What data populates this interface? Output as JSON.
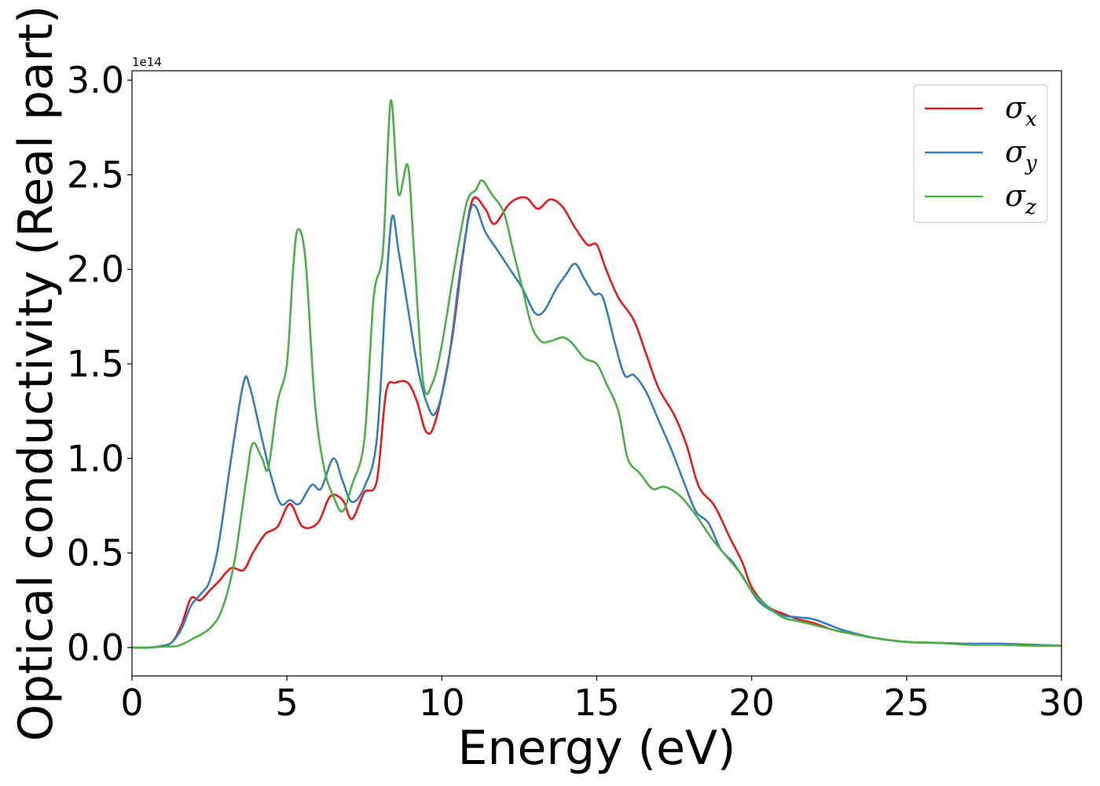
{
  "chart_data": {
    "type": "line",
    "xlabel": "Energy (eV)",
    "ylabel": "Optical conductivity (Real part)",
    "y_offset_label": "1e14",
    "xlim": [
      0,
      30
    ],
    "ylim": [
      -0.15,
      3.05
    ],
    "x_ticks": [
      0,
      5,
      10,
      15,
      20,
      25,
      30
    ],
    "x_tick_labels": [
      "0",
      "5",
      "10",
      "15",
      "20",
      "25",
      "30"
    ],
    "y_ticks": [
      0.0,
      0.5,
      1.0,
      1.5,
      2.0,
      2.5,
      3.0
    ],
    "y_tick_labels": [
      "0.0",
      "0.5",
      "1.0",
      "1.5",
      "2.0",
      "2.5",
      "3.0"
    ],
    "grid": false,
    "legend_position": "top-right",
    "series": [
      {
        "name": "σx",
        "legend_main": "σ",
        "legend_sub": "x",
        "color": "#e41a1c",
        "points": [
          [
            0,
            0
          ],
          [
            0.5,
            0
          ],
          [
            1.0,
            0.01
          ],
          [
            1.3,
            0.03
          ],
          [
            1.6,
            0.12
          ],
          [
            1.9,
            0.26
          ],
          [
            2.2,
            0.25
          ],
          [
            2.5,
            0.3
          ],
          [
            2.8,
            0.35
          ],
          [
            3.2,
            0.42
          ],
          [
            3.6,
            0.41
          ],
          [
            3.9,
            0.5
          ],
          [
            4.3,
            0.6
          ],
          [
            4.7,
            0.64
          ],
          [
            5.1,
            0.76
          ],
          [
            5.5,
            0.64
          ],
          [
            6.0,
            0.66
          ],
          [
            6.4,
            0.8
          ],
          [
            6.8,
            0.78
          ],
          [
            7.1,
            0.68
          ],
          [
            7.5,
            0.82
          ],
          [
            7.9,
            0.88
          ],
          [
            8.2,
            1.35
          ],
          [
            8.5,
            1.4
          ],
          [
            8.9,
            1.4
          ],
          [
            9.2,
            1.3
          ],
          [
            9.5,
            1.14
          ],
          [
            9.8,
            1.2
          ],
          [
            10.3,
            1.6
          ],
          [
            10.7,
            2.1
          ],
          [
            11.0,
            2.37
          ],
          [
            11.4,
            2.32
          ],
          [
            11.7,
            2.24
          ],
          [
            12.2,
            2.35
          ],
          [
            12.7,
            2.38
          ],
          [
            13.1,
            2.32
          ],
          [
            13.5,
            2.37
          ],
          [
            13.9,
            2.33
          ],
          [
            14.3,
            2.22
          ],
          [
            14.7,
            2.13
          ],
          [
            15.0,
            2.13
          ],
          [
            15.3,
            2.0
          ],
          [
            15.7,
            1.85
          ],
          [
            16.2,
            1.73
          ],
          [
            16.6,
            1.55
          ],
          [
            17.0,
            1.37
          ],
          [
            17.5,
            1.23
          ],
          [
            17.9,
            1.07
          ],
          [
            18.3,
            0.85
          ],
          [
            18.8,
            0.75
          ],
          [
            19.3,
            0.58
          ],
          [
            19.7,
            0.45
          ],
          [
            20.0,
            0.32
          ],
          [
            20.5,
            0.22
          ],
          [
            21.0,
            0.18
          ],
          [
            21.5,
            0.15
          ],
          [
            22.0,
            0.13
          ],
          [
            22.5,
            0.1
          ],
          [
            23.0,
            0.08
          ],
          [
            24.0,
            0.05
          ],
          [
            25.0,
            0.03
          ],
          [
            26.0,
            0.025
          ],
          [
            27.0,
            0.02
          ],
          [
            28.0,
            0.02
          ],
          [
            29.0,
            0.015
          ],
          [
            30.0,
            0.01
          ]
        ]
      },
      {
        "name": "σy",
        "legend_main": "σ",
        "legend_sub": "y",
        "color": "#377eb8",
        "points": [
          [
            0,
            0
          ],
          [
            0.5,
            0
          ],
          [
            1.0,
            0.01
          ],
          [
            1.3,
            0.03
          ],
          [
            1.6,
            0.1
          ],
          [
            1.9,
            0.22
          ],
          [
            2.2,
            0.28
          ],
          [
            2.5,
            0.35
          ],
          [
            2.8,
            0.55
          ],
          [
            3.2,
            1.0
          ],
          [
            3.6,
            1.4
          ],
          [
            3.8,
            1.38
          ],
          [
            4.2,
            1.1
          ],
          [
            4.5,
            0.9
          ],
          [
            4.8,
            0.76
          ],
          [
            5.1,
            0.78
          ],
          [
            5.4,
            0.76
          ],
          [
            5.8,
            0.86
          ],
          [
            6.1,
            0.84
          ],
          [
            6.5,
            1.0
          ],
          [
            6.8,
            0.88
          ],
          [
            7.1,
            0.77
          ],
          [
            7.5,
            0.85
          ],
          [
            7.9,
            1.1
          ],
          [
            8.2,
            1.9
          ],
          [
            8.4,
            2.28
          ],
          [
            8.6,
            2.1
          ],
          [
            8.9,
            1.8
          ],
          [
            9.2,
            1.5
          ],
          [
            9.5,
            1.3
          ],
          [
            9.8,
            1.24
          ],
          [
            10.2,
            1.5
          ],
          [
            10.6,
            2.0
          ],
          [
            10.9,
            2.3
          ],
          [
            11.1,
            2.33
          ],
          [
            11.4,
            2.2
          ],
          [
            11.8,
            2.1
          ],
          [
            12.2,
            2.0
          ],
          [
            12.6,
            1.9
          ],
          [
            13.0,
            1.77
          ],
          [
            13.3,
            1.78
          ],
          [
            13.7,
            1.9
          ],
          [
            14.0,
            1.97
          ],
          [
            14.3,
            2.03
          ],
          [
            14.6,
            1.95
          ],
          [
            14.9,
            1.87
          ],
          [
            15.2,
            1.85
          ],
          [
            15.6,
            1.6
          ],
          [
            15.9,
            1.44
          ],
          [
            16.2,
            1.44
          ],
          [
            16.6,
            1.35
          ],
          [
            17.0,
            1.2
          ],
          [
            17.4,
            1.05
          ],
          [
            17.8,
            0.88
          ],
          [
            18.2,
            0.72
          ],
          [
            18.6,
            0.66
          ],
          [
            19.0,
            0.52
          ],
          [
            19.4,
            0.45
          ],
          [
            19.8,
            0.35
          ],
          [
            20.2,
            0.25
          ],
          [
            20.6,
            0.2
          ],
          [
            21.0,
            0.17
          ],
          [
            21.5,
            0.16
          ],
          [
            22.0,
            0.15
          ],
          [
            22.5,
            0.12
          ],
          [
            23.0,
            0.09
          ],
          [
            24.0,
            0.05
          ],
          [
            25.0,
            0.03
          ],
          [
            26.0,
            0.025
          ],
          [
            27.0,
            0.02
          ],
          [
            28.0,
            0.02
          ],
          [
            29.0,
            0.015
          ],
          [
            30.0,
            0.01
          ]
        ]
      },
      {
        "name": "σz",
        "legend_main": "σ",
        "legend_sub": "z",
        "color": "#4daf4a",
        "points": [
          [
            0,
            0
          ],
          [
            0.5,
            0
          ],
          [
            1.0,
            0.005
          ],
          [
            1.5,
            0.01
          ],
          [
            2.0,
            0.05
          ],
          [
            2.5,
            0.1
          ],
          [
            2.9,
            0.2
          ],
          [
            3.3,
            0.45
          ],
          [
            3.7,
            0.9
          ],
          [
            3.9,
            1.08
          ],
          [
            4.2,
            1.0
          ],
          [
            4.4,
            0.95
          ],
          [
            4.7,
            1.3
          ],
          [
            5.0,
            1.5
          ],
          [
            5.2,
            2.0
          ],
          [
            5.35,
            2.21
          ],
          [
            5.6,
            2.05
          ],
          [
            5.9,
            1.3
          ],
          [
            6.2,
            0.95
          ],
          [
            6.5,
            0.8
          ],
          [
            6.8,
            0.72
          ],
          [
            7.1,
            0.86
          ],
          [
            7.5,
            1.1
          ],
          [
            7.8,
            1.85
          ],
          [
            8.1,
            2.1
          ],
          [
            8.35,
            2.89
          ],
          [
            8.6,
            2.4
          ],
          [
            8.9,
            2.55
          ],
          [
            9.1,
            2.1
          ],
          [
            9.4,
            1.4
          ],
          [
            9.7,
            1.4
          ],
          [
            10.0,
            1.6
          ],
          [
            10.4,
            2.0
          ],
          [
            10.8,
            2.35
          ],
          [
            11.1,
            2.42
          ],
          [
            11.3,
            2.47
          ],
          [
            11.6,
            2.4
          ],
          [
            12.0,
            2.3
          ],
          [
            12.3,
            2.1
          ],
          [
            12.6,
            1.9
          ],
          [
            12.9,
            1.7
          ],
          [
            13.2,
            1.62
          ],
          [
            13.5,
            1.62
          ],
          [
            13.9,
            1.64
          ],
          [
            14.2,
            1.61
          ],
          [
            14.6,
            1.53
          ],
          [
            15.0,
            1.5
          ],
          [
            15.3,
            1.4
          ],
          [
            15.7,
            1.25
          ],
          [
            16.0,
            1.0
          ],
          [
            16.4,
            0.92
          ],
          [
            16.8,
            0.84
          ],
          [
            17.2,
            0.85
          ],
          [
            17.7,
            0.8
          ],
          [
            18.2,
            0.7
          ],
          [
            18.7,
            0.58
          ],
          [
            19.2,
            0.48
          ],
          [
            19.7,
            0.38
          ],
          [
            20.0,
            0.3
          ],
          [
            20.5,
            0.22
          ],
          [
            21.0,
            0.16
          ],
          [
            21.5,
            0.14
          ],
          [
            22.0,
            0.12
          ],
          [
            22.5,
            0.1
          ],
          [
            23.0,
            0.08
          ],
          [
            24.0,
            0.05
          ],
          [
            25.0,
            0.03
          ],
          [
            26.0,
            0.025
          ],
          [
            27.0,
            0.015
          ],
          [
            28.0,
            0.015
          ],
          [
            29.0,
            0.01
          ],
          [
            30.0,
            0.01
          ]
        ]
      }
    ]
  }
}
